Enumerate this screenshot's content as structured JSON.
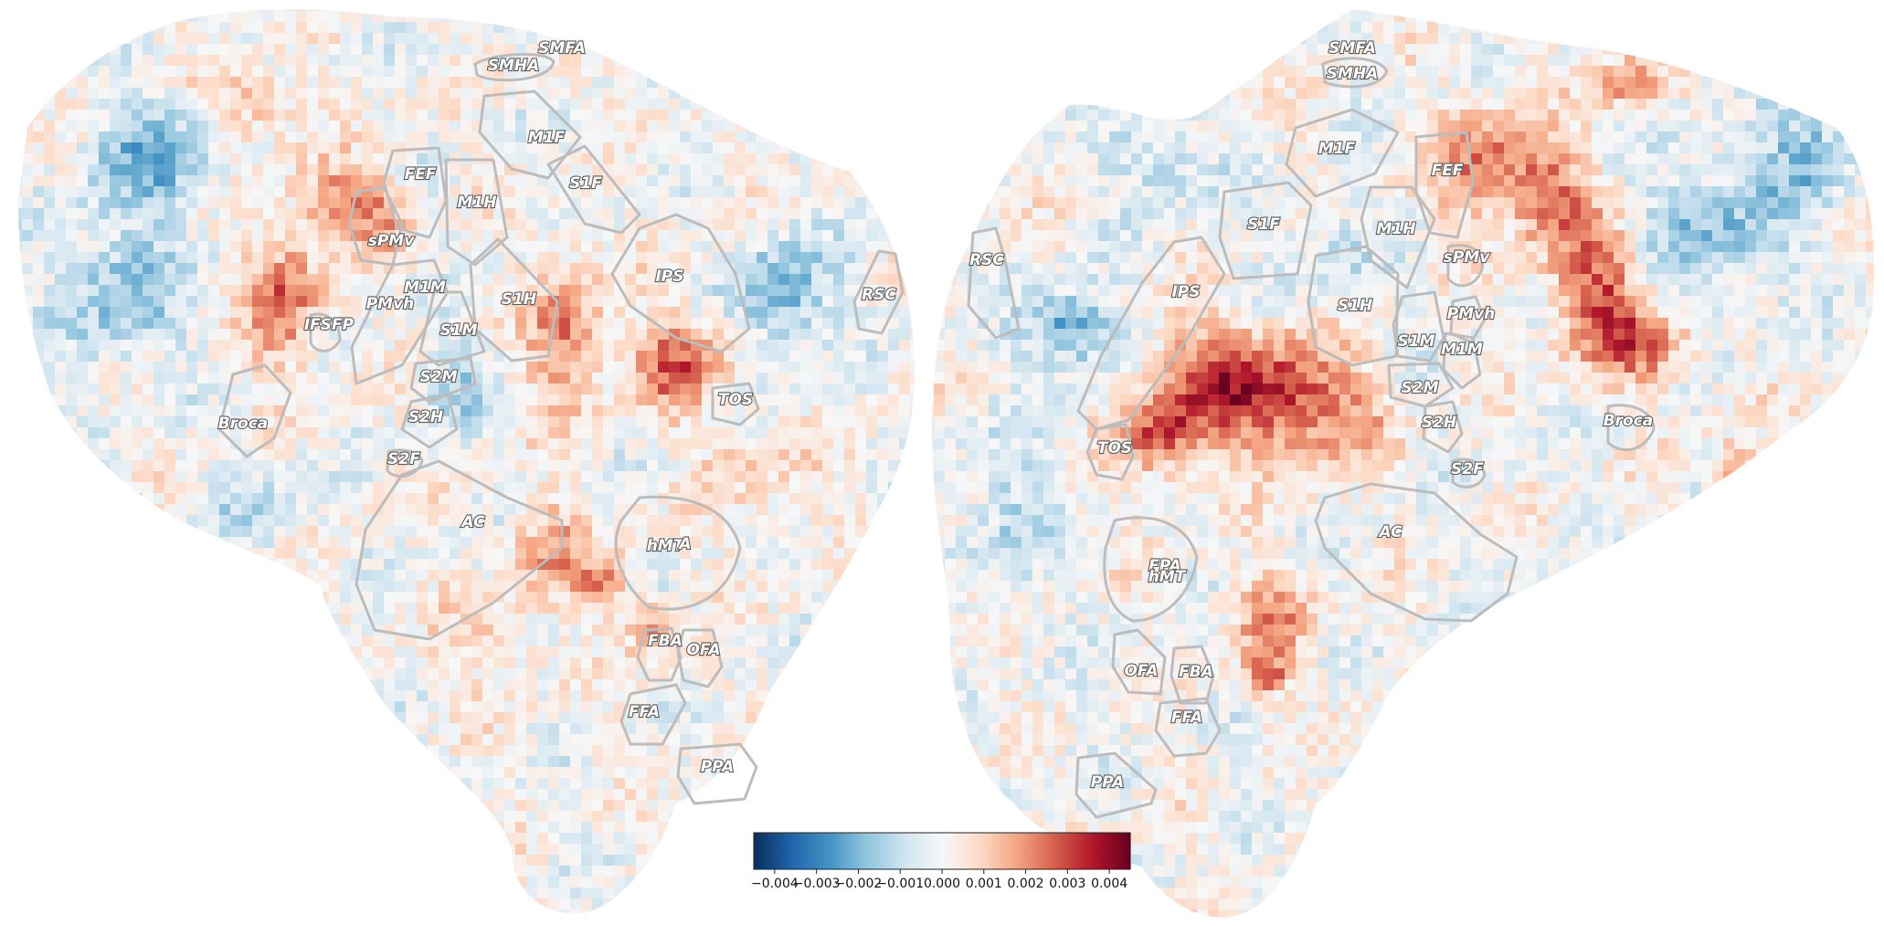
{
  "colormap": {
    "name": "RdBu_r",
    "stops": [
      "#053061",
      "#2166ac",
      "#4393c3",
      "#92c5de",
      "#d1e5f0",
      "#f7f7f7",
      "#fddbc7",
      "#f4a582",
      "#d6604d",
      "#b2182b",
      "#67001f"
    ],
    "range": [
      -0.0045,
      0.0045
    ],
    "tick_labels": [
      "−0.004",
      "−0.003",
      "−0.002",
      "−0.001",
      "0.000",
      "0.001",
      "0.002",
      "0.003",
      "0.004"
    ]
  },
  "left_hemisphere": {
    "rois": [
      "SMFA",
      "SMHA",
      "M1F",
      "S1F",
      "FEF",
      "M1H",
      "sPMv",
      "IPS",
      "RSC",
      "M1M",
      "PMvh",
      "IFSFP",
      "S1H",
      "S1M",
      "S2M",
      "TOS",
      "Broca",
      "S2H",
      "S2F",
      "AC",
      "hMT",
      "FBA",
      "OFA",
      "FFA",
      "PPA"
    ],
    "roi_overlap_label": "A"
  },
  "right_hemisphere": {
    "rois": [
      "SMFA",
      "SMHA",
      "M1F",
      "FEF",
      "S1F",
      "M1H",
      "RSC",
      "IPS",
      "sPMv",
      "S1H",
      "PMvh",
      "S1M",
      "M1M",
      "S2M",
      "Broca",
      "S2H",
      "TOS",
      "S2F",
      "AC",
      "FPA",
      "hMT",
      "OFA",
      "FBA",
      "FFA",
      "PPA"
    ]
  }
}
